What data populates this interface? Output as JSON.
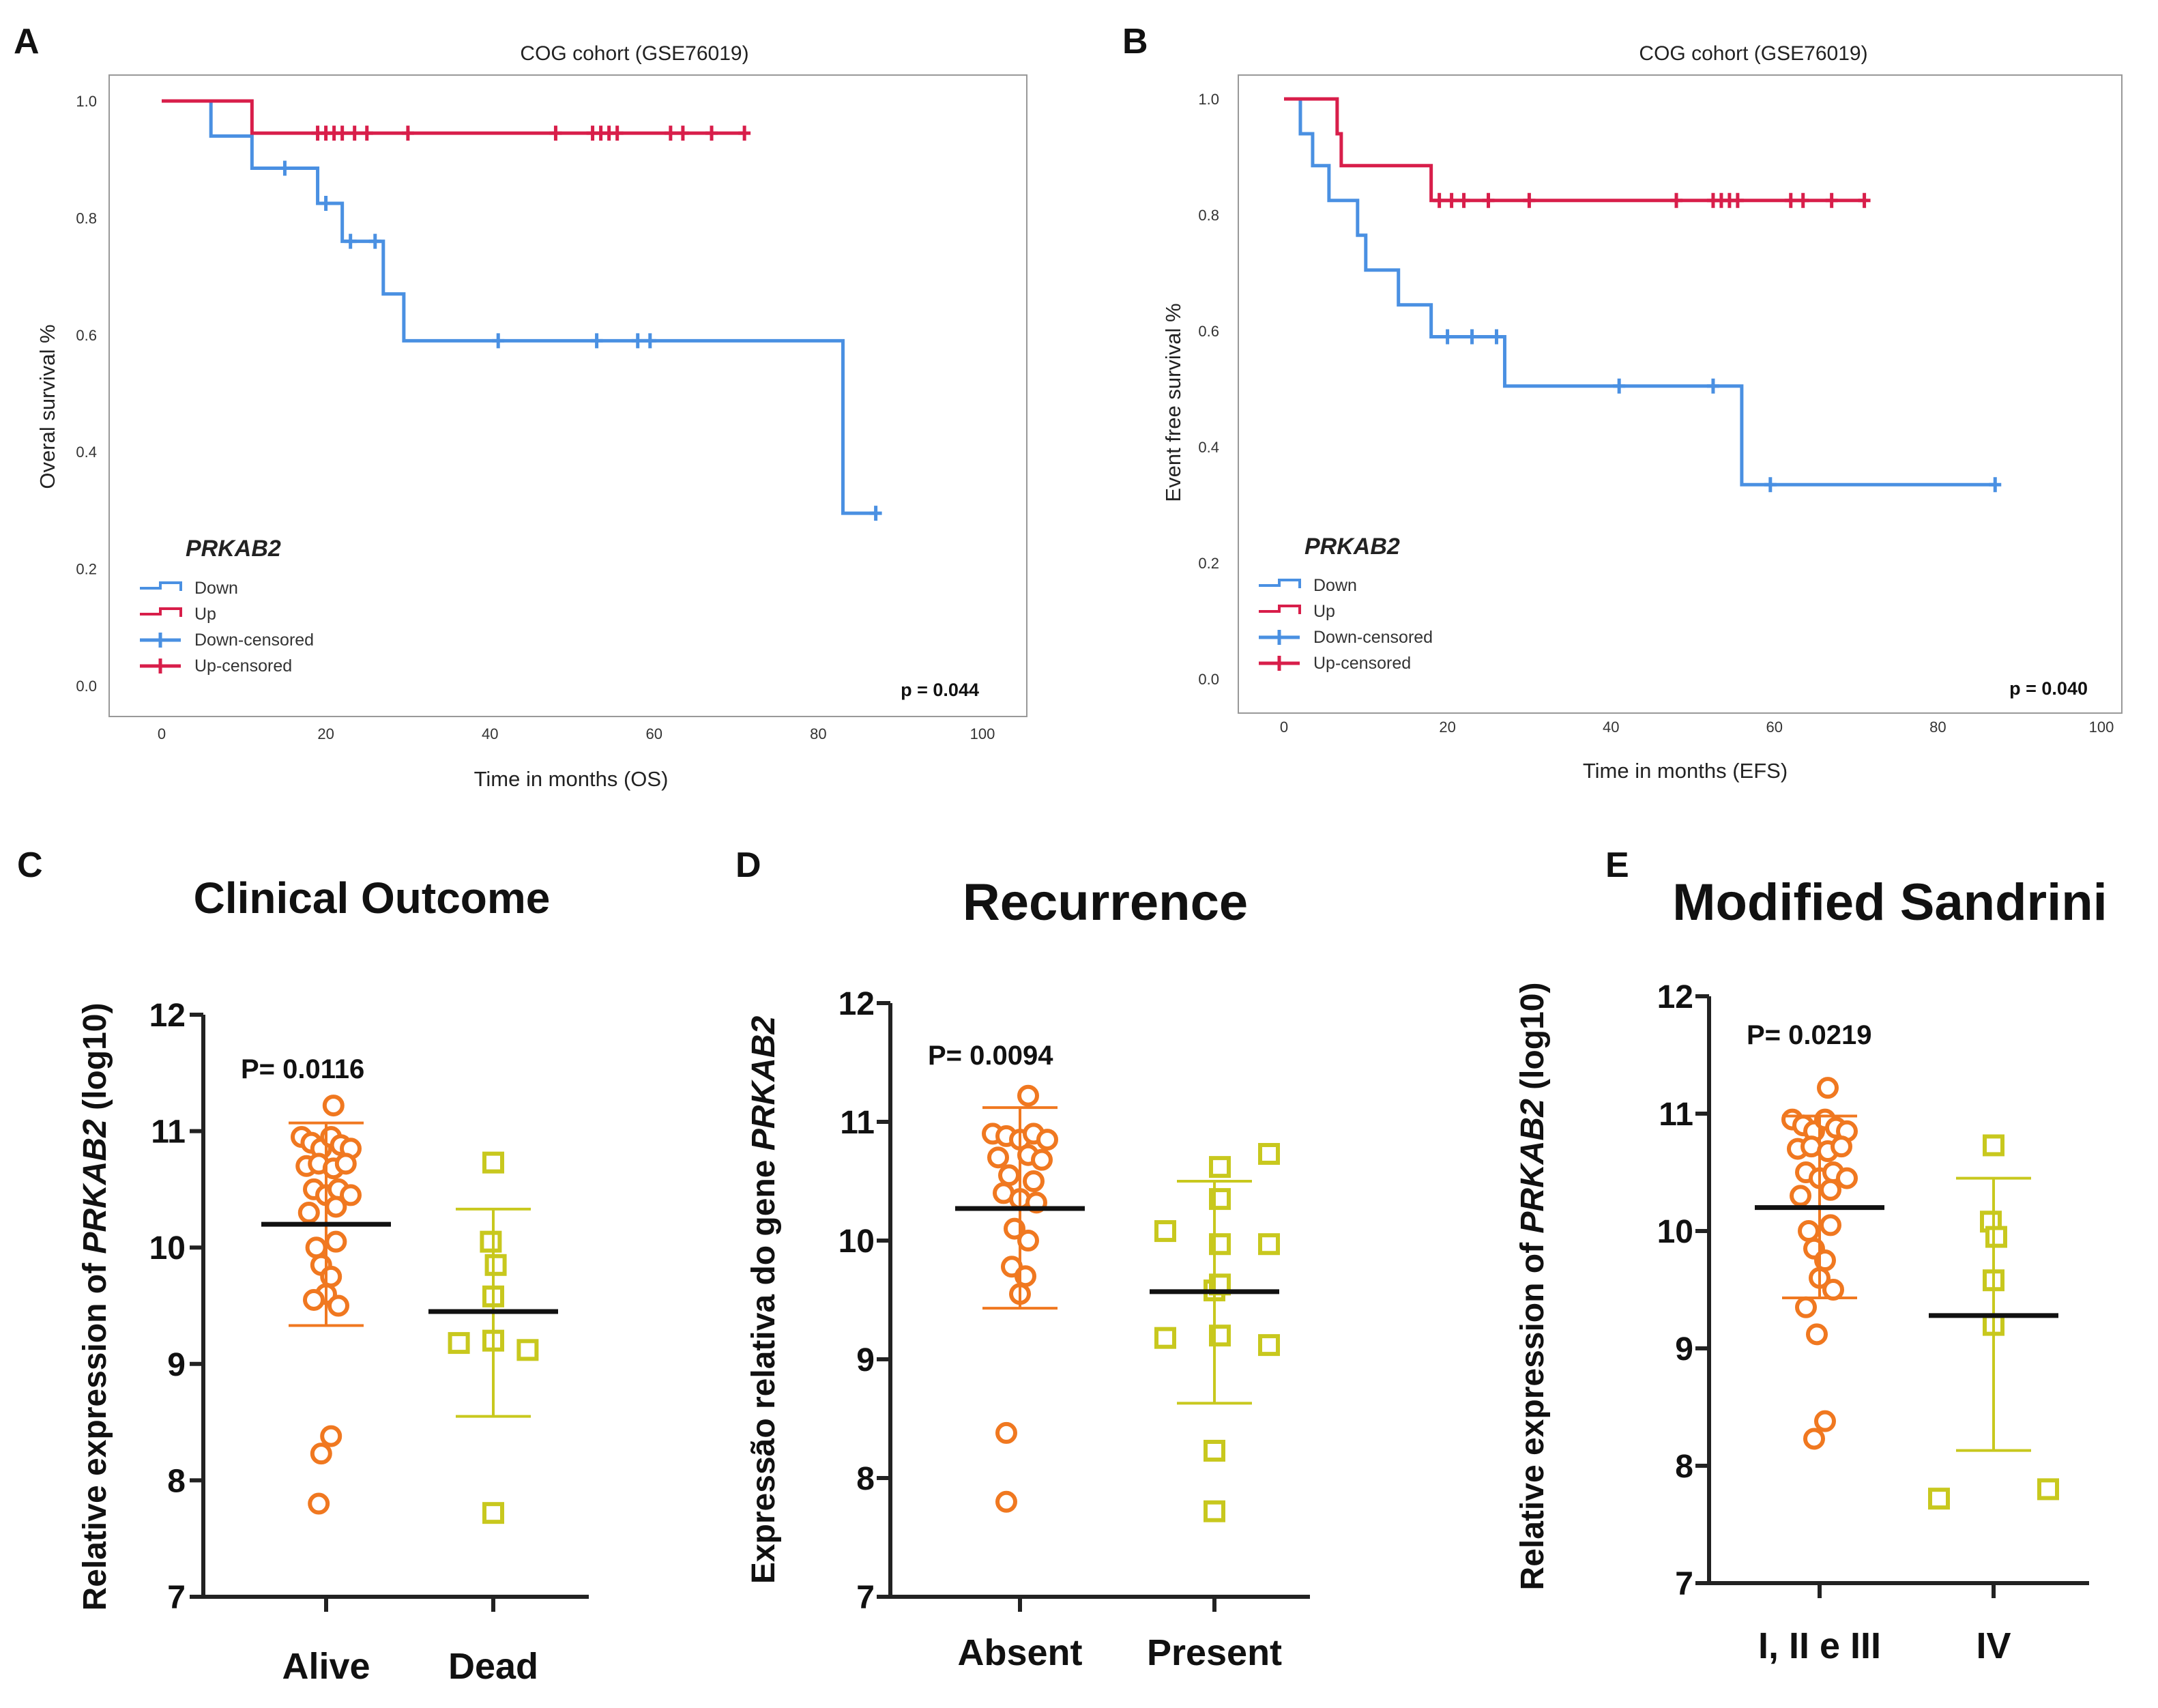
{
  "figure": {
    "panel_letters": [
      "A",
      "B",
      "C",
      "D",
      "E"
    ]
  },
  "colors": {
    "down": "#4a90e2",
    "up": "#d81e4a",
    "group1": "#f07820",
    "group2": "#c8c81e",
    "axis": "#222222",
    "frame": "#999999",
    "mean_line": "#111111"
  },
  "chart_data": [
    {
      "panel": "A",
      "type": "line",
      "subtype": "kaplan-meier",
      "title": "COG cohort (GSE76019)",
      "xlabel": "Time in months (OS)",
      "ylabel": "Overal survival %",
      "xlim": [
        0,
        100
      ],
      "ylim": [
        0,
        1
      ],
      "x_ticks": [
        0,
        20,
        40,
        60,
        80,
        100
      ],
      "y_ticks": [
        "0.0",
        "0.2",
        "0.4",
        "0.6",
        "0.8",
        "1.0"
      ],
      "legend_title": "PRKAB2",
      "legend": [
        "Down",
        "Up",
        "Down-censored",
        "Up-censored"
      ],
      "legend_position": "bottom-left",
      "p_value": "p = 0.044",
      "series": [
        {
          "name": "Down",
          "color_key": "down",
          "steps": [
            [
              0,
              1.0
            ],
            [
              6,
              0.94
            ],
            [
              11,
              0.885
            ],
            [
              19,
              0.825
            ],
            [
              22,
              0.76
            ],
            [
              27,
              0.67
            ],
            [
              29.5,
              0.59
            ],
            [
              83,
              0.295
            ],
            [
              87,
              0.295
            ]
          ],
          "censored": [
            [
              15,
              0.885
            ],
            [
              20,
              0.825
            ],
            [
              23,
              0.76
            ],
            [
              26,
              0.76
            ],
            [
              41,
              0.59
            ],
            [
              53,
              0.59
            ],
            [
              58,
              0.59
            ],
            [
              59.5,
              0.59
            ],
            [
              87,
              0.295
            ]
          ]
        },
        {
          "name": "Up",
          "color_key": "up",
          "steps": [
            [
              0,
              1.0
            ],
            [
              11,
              0.945
            ],
            [
              71,
              0.945
            ]
          ],
          "censored": [
            [
              19,
              0.945
            ],
            [
              20,
              0.945
            ],
            [
              21,
              0.945
            ],
            [
              22,
              0.945
            ],
            [
              23.5,
              0.945
            ],
            [
              25,
              0.945
            ],
            [
              30,
              0.945
            ],
            [
              48,
              0.945
            ],
            [
              52.5,
              0.945
            ],
            [
              53.5,
              0.945
            ],
            [
              54.5,
              0.945
            ],
            [
              55.5,
              0.945
            ],
            [
              62,
              0.945
            ],
            [
              63.5,
              0.945
            ],
            [
              67,
              0.945
            ],
            [
              71,
              0.945
            ]
          ]
        }
      ]
    },
    {
      "panel": "B",
      "type": "line",
      "subtype": "kaplan-meier",
      "title": "COG cohort (GSE76019)",
      "xlabel": "Time in months (EFS)",
      "ylabel": "Event free survival %",
      "xlim": [
        0,
        100
      ],
      "ylim": [
        0,
        1
      ],
      "x_ticks": [
        0,
        20,
        40,
        60,
        80,
        100
      ],
      "y_ticks": [
        "0.0",
        "0.2",
        "0.4",
        "0.6",
        "0.8",
        "1.0"
      ],
      "legend_title": "PRKAB2",
      "legend": [
        "Down",
        "Up",
        "Down-censored",
        "Up-censored"
      ],
      "legend_position": "bottom-left",
      "p_value": "p = 0.040",
      "series": [
        {
          "name": "Down",
          "color_key": "down",
          "steps": [
            [
              0,
              1.0
            ],
            [
              2,
              0.94
            ],
            [
              3.5,
              0.885
            ],
            [
              5.5,
              0.825
            ],
            [
              9,
              0.765
            ],
            [
              10,
              0.705
            ],
            [
              14,
              0.645
            ],
            [
              18,
              0.59
            ],
            [
              27,
              0.505
            ],
            [
              56,
              0.335
            ],
            [
              87,
              0.335
            ]
          ],
          "censored": [
            [
              20,
              0.59
            ],
            [
              23,
              0.59
            ],
            [
              26,
              0.59
            ],
            [
              41,
              0.505
            ],
            [
              52.5,
              0.505
            ],
            [
              59.5,
              0.335
            ],
            [
              87,
              0.335
            ]
          ]
        },
        {
          "name": "Up",
          "color_key": "up",
          "steps": [
            [
              0,
              1.0
            ],
            [
              6.5,
              0.94
            ],
            [
              7,
              0.885
            ],
            [
              18,
              0.825
            ],
            [
              71,
              0.825
            ]
          ],
          "censored": [
            [
              19,
              0.825
            ],
            [
              20.5,
              0.825
            ],
            [
              22,
              0.825
            ],
            [
              25,
              0.825
            ],
            [
              30,
              0.825
            ],
            [
              48,
              0.825
            ],
            [
              52.5,
              0.825
            ],
            [
              53.5,
              0.825
            ],
            [
              54.5,
              0.825
            ],
            [
              55.5,
              0.825
            ],
            [
              62,
              0.825
            ],
            [
              63.5,
              0.825
            ],
            [
              67,
              0.825
            ],
            [
              71,
              0.825
            ]
          ]
        }
      ]
    },
    {
      "panel": "C",
      "type": "scatter",
      "subtype": "dot-plot",
      "title": "Clinical Outcome",
      "ylabel_prefix": "Relative expression of ",
      "ylabel_gene": "PRKAB2",
      "ylabel_suffix": " (log10)",
      "ylim": [
        7,
        12
      ],
      "y_ticks": [
        "7",
        "8",
        "9",
        "10",
        "11",
        "12"
      ],
      "categories": [
        "Alive",
        "Dead"
      ],
      "p_value": "P= 0.0116",
      "groups": [
        {
          "name": "Alive",
          "marker": "circle",
          "color_key": "group1",
          "mean": 10.2,
          "sd_low": 9.33,
          "sd_high": 11.07,
          "points": [
            [
              -0.1,
              10.95
            ],
            [
              -0.06,
              10.9
            ],
            [
              -0.02,
              10.85
            ],
            [
              0.02,
              10.95
            ],
            [
              0.06,
              10.88
            ],
            [
              0.1,
              10.85
            ],
            [
              -0.08,
              10.7
            ],
            [
              -0.03,
              10.72
            ],
            [
              0.03,
              10.68
            ],
            [
              0.08,
              10.72
            ],
            [
              -0.05,
              10.5
            ],
            [
              0,
              10.45
            ],
            [
              0.05,
              10.5
            ],
            [
              0.1,
              10.45
            ],
            [
              -0.07,
              10.3
            ],
            [
              0.04,
              10.35
            ],
            [
              -0.04,
              10.0
            ],
            [
              0.04,
              10.05
            ],
            [
              -0.02,
              9.85
            ],
            [
              0.02,
              9.75
            ],
            [
              0,
              9.6
            ],
            [
              0.05,
              9.5
            ],
            [
              -0.05,
              9.55
            ],
            [
              0.03,
              11.22
            ],
            [
              0.02,
              8.38
            ],
            [
              -0.02,
              8.23
            ],
            [
              -0.03,
              7.8
            ]
          ]
        },
        {
          "name": "Dead",
          "marker": "square",
          "color_key": "group2",
          "mean": 9.45,
          "sd_low": 8.55,
          "sd_high": 10.33,
          "points": [
            [
              0,
              10.73
            ],
            [
              -0.01,
              10.05
            ],
            [
              0.01,
              9.85
            ],
            [
              0,
              9.58
            ],
            [
              -0.14,
              9.18
            ],
            [
              0,
              9.2
            ],
            [
              0.14,
              9.12
            ],
            [
              0,
              7.72
            ]
          ]
        }
      ]
    },
    {
      "panel": "D",
      "type": "scatter",
      "subtype": "dot-plot",
      "title": "Recurrence",
      "ylabel_prefix": "Expressão relativa do gene ",
      "ylabel_gene": "PRKAB2",
      "ylabel_suffix": "",
      "ylim": [
        7,
        12
      ],
      "y_ticks": [
        "7",
        "8",
        "9",
        "10",
        "11",
        "12"
      ],
      "categories": [
        "Absent",
        "Present"
      ],
      "p_value": "P= 0.0094",
      "groups": [
        {
          "name": "Absent",
          "marker": "circle",
          "color_key": "group1",
          "mean": 10.27,
          "sd_low": 9.43,
          "sd_high": 11.12,
          "points": [
            [
              -0.1,
              10.9
            ],
            [
              -0.05,
              10.88
            ],
            [
              0,
              10.85
            ],
            [
              0.05,
              10.9
            ],
            [
              0.1,
              10.85
            ],
            [
              -0.08,
              10.7
            ],
            [
              0.03,
              10.72
            ],
            [
              0.08,
              10.68
            ],
            [
              -0.04,
              10.55
            ],
            [
              0.05,
              10.5
            ],
            [
              -0.06,
              10.4
            ],
            [
              0,
              10.35
            ],
            [
              0.06,
              10.32
            ],
            [
              -0.02,
              10.1
            ],
            [
              0.03,
              10.0
            ],
            [
              -0.03,
              9.78
            ],
            [
              0.02,
              9.7
            ],
            [
              0,
              9.55
            ],
            [
              0.03,
              11.22
            ],
            [
              -0.05,
              8.38
            ],
            [
              -0.05,
              7.8
            ]
          ]
        },
        {
          "name": "Present",
          "marker": "square",
          "color_key": "group2",
          "mean": 9.57,
          "sd_low": 8.63,
          "sd_high": 10.5,
          "points": [
            [
              0.02,
              10.62
            ],
            [
              0.2,
              10.73
            ],
            [
              0.02,
              10.35
            ],
            [
              -0.18,
              10.08
            ],
            [
              0.02,
              9.97
            ],
            [
              0.2,
              9.97
            ],
            [
              0,
              9.58
            ],
            [
              0.02,
              9.63
            ],
            [
              -0.18,
              9.18
            ],
            [
              0.02,
              9.2
            ],
            [
              0.2,
              9.12
            ],
            [
              0,
              8.23
            ],
            [
              0,
              7.72
            ]
          ]
        }
      ]
    },
    {
      "panel": "E",
      "type": "scatter",
      "subtype": "dot-plot",
      "title": "Modified Sandrini",
      "ylabel_prefix": "Relative expression of ",
      "ylabel_gene": "PRKAB2",
      "ylabel_suffix": " (log10)",
      "ylim": [
        7,
        12
      ],
      "y_ticks": [
        "7",
        "8",
        "9",
        "10",
        "11",
        "12"
      ],
      "categories": [
        "I, II e III",
        "IV"
      ],
      "p_value": "P= 0.0219",
      "groups": [
        {
          "name": "I, II e III",
          "marker": "circle",
          "color_key": "group1",
          "mean": 10.2,
          "sd_low": 9.43,
          "sd_high": 10.98,
          "points": [
            [
              -0.1,
              10.95
            ],
            [
              -0.06,
              10.9
            ],
            [
              -0.02,
              10.85
            ],
            [
              0.02,
              10.95
            ],
            [
              0.06,
              10.88
            ],
            [
              0.1,
              10.85
            ],
            [
              -0.08,
              10.7
            ],
            [
              -0.03,
              10.72
            ],
            [
              0.03,
              10.68
            ],
            [
              0.08,
              10.72
            ],
            [
              -0.05,
              10.5
            ],
            [
              0,
              10.45
            ],
            [
              0.05,
              10.5
            ],
            [
              0.1,
              10.45
            ],
            [
              -0.07,
              10.3
            ],
            [
              0.04,
              10.35
            ],
            [
              -0.04,
              10.0
            ],
            [
              0.04,
              10.05
            ],
            [
              -0.02,
              9.85
            ],
            [
              0.02,
              9.75
            ],
            [
              0,
              9.6
            ],
            [
              0.05,
              9.5
            ],
            [
              -0.05,
              9.35
            ],
            [
              0.03,
              11.22
            ],
            [
              -0.01,
              9.12
            ],
            [
              0.02,
              8.38
            ],
            [
              -0.02,
              8.23
            ]
          ]
        },
        {
          "name": "IV",
          "marker": "square",
          "color_key": "group2",
          "mean": 9.28,
          "sd_low": 8.13,
          "sd_high": 10.45,
          "points": [
            [
              0,
              10.73
            ],
            [
              -0.01,
              10.08
            ],
            [
              0.01,
              9.95
            ],
            [
              0,
              9.58
            ],
            [
              0,
              9.2
            ],
            [
              -0.2,
              7.72
            ],
            [
              0.2,
              7.8
            ]
          ]
        }
      ]
    }
  ]
}
